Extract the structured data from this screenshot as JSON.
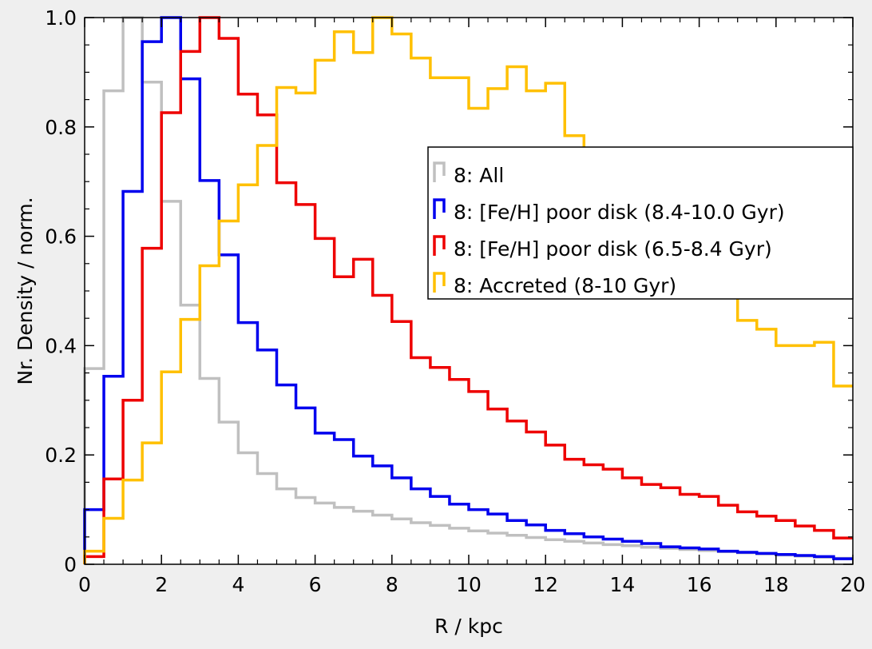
{
  "chart_data": {
    "type": "line",
    "step": true,
    "xlabel": "R / kpc",
    "ylabel": "Nr. Density / norm.",
    "xlim": [
      0,
      20
    ],
    "ylim": [
      0,
      1.0
    ],
    "xticks": [
      0,
      2,
      4,
      6,
      8,
      10,
      12,
      14,
      16,
      18,
      20
    ],
    "yticks": [
      0,
      0.2,
      0.4,
      0.6,
      0.8,
      1.0
    ],
    "xtick_labels": [
      "0",
      "2",
      "4",
      "6",
      "8",
      "10",
      "12",
      "14",
      "16",
      "18",
      "20"
    ],
    "ytick_labels": [
      "0",
      "0.2",
      "0.4",
      "0.6",
      "0.8",
      "1.0"
    ],
    "grid": false,
    "legend_position": "center-right",
    "bin_edges": [
      0,
      0.5,
      1,
      1.5,
      2,
      2.5,
      3,
      3.5,
      4,
      4.5,
      5,
      5.5,
      6,
      6.5,
      7,
      7.5,
      8,
      8.5,
      9,
      9.5,
      10,
      10.5,
      11,
      11.5,
      12,
      12.5,
      13,
      13.5,
      14,
      14.5,
      15,
      15.5,
      16,
      16.5,
      17,
      17.5,
      18,
      18.5,
      19,
      19.5,
      20
    ],
    "series": [
      {
        "name": "8: All",
        "color": "#c0c0c0",
        "values": [
          0.358,
          0.866,
          1.0,
          0.882,
          0.664,
          0.474,
          0.34,
          0.26,
          0.204,
          0.166,
          0.138,
          0.122,
          0.112,
          0.104,
          0.097,
          0.09,
          0.083,
          0.076,
          0.071,
          0.066,
          0.061,
          0.057,
          0.053,
          0.049,
          0.045,
          0.042,
          0.039,
          0.036,
          0.034,
          0.031,
          0.029,
          0.027,
          0.025,
          0.023,
          0.021,
          0.019,
          0.017,
          0.015,
          0.013,
          0.011
        ]
      },
      {
        "name": "8: [Fe/H] poor disk (8.4-10.0 Gyr)",
        "color": "#0000ee",
        "values": [
          0.1,
          0.344,
          0.682,
          0.956,
          1.0,
          0.888,
          0.702,
          0.566,
          0.442,
          0.392,
          0.328,
          0.286,
          0.24,
          0.228,
          0.198,
          0.18,
          0.158,
          0.138,
          0.124,
          0.11,
          0.1,
          0.092,
          0.08,
          0.072,
          0.062,
          0.056,
          0.05,
          0.046,
          0.042,
          0.038,
          0.032,
          0.03,
          0.028,
          0.024,
          0.022,
          0.02,
          0.018,
          0.016,
          0.014,
          0.01
        ]
      },
      {
        "name": "8: [Fe/H] poor disk (6.5-8.4 Gyr)",
        "color": "#ee0000",
        "values": [
          0.014,
          0.156,
          0.3,
          0.578,
          0.826,
          0.938,
          1.0,
          0.962,
          0.86,
          0.822,
          0.698,
          0.658,
          0.596,
          0.526,
          0.558,
          0.492,
          0.444,
          0.378,
          0.36,
          0.338,
          0.316,
          0.284,
          0.262,
          0.242,
          0.218,
          0.192,
          0.182,
          0.174,
          0.158,
          0.146,
          0.14,
          0.128,
          0.124,
          0.108,
          0.096,
          0.088,
          0.08,
          0.07,
          0.062,
          0.048
        ]
      },
      {
        "name": "8: Accreted (8-10 Gyr)",
        "color": "#ffc000",
        "values": [
          0.024,
          0.084,
          0.154,
          0.222,
          0.352,
          0.448,
          0.546,
          0.628,
          0.694,
          0.766,
          0.872,
          0.862,
          0.922,
          0.974,
          0.936,
          1.0,
          0.97,
          0.926,
          0.89,
          0.89,
          0.834,
          0.87,
          0.91,
          0.866,
          0.88,
          0.784,
          0.752,
          0.676,
          0.738,
          0.662,
          0.666,
          0.592,
          0.558,
          0.492,
          0.446,
          0.43,
          0.4,
          0.4,
          0.406,
          0.326
        ]
      }
    ]
  }
}
